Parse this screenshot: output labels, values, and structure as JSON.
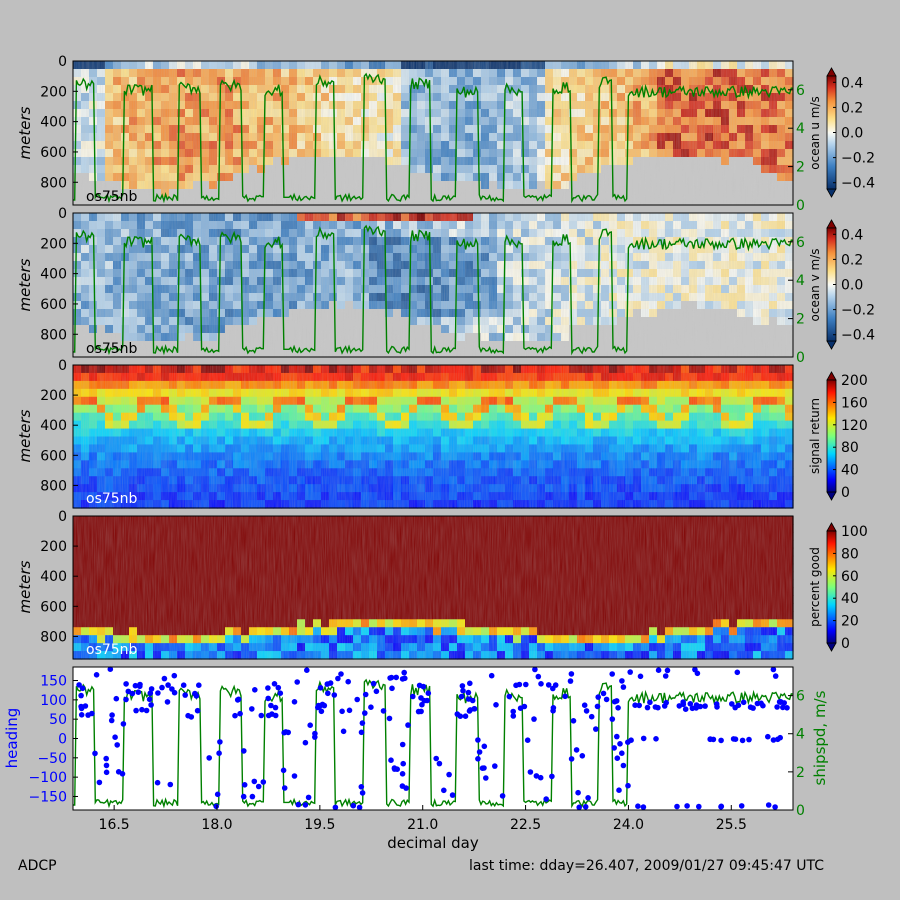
{
  "footer": {
    "left": "ADCP",
    "right": "last time: dday=26.407,  2009/01/27 09:45:47 UTC"
  },
  "chart_data": [
    {
      "type": "heatmap",
      "id": "u",
      "label": "os75nb",
      "ylabel": "meters",
      "yticks": [
        "0",
        "200",
        "400",
        "600",
        "800"
      ],
      "cbar_label": "ocean u m/s",
      "cbar_ticks": [
        "0.4",
        "0.2",
        "0.0",
        "−0.2",
        "−0.4"
      ],
      "shipspd_ticks": [
        "6",
        "4",
        "2",
        "0"
      ],
      "ylim": [
        950,
        0
      ],
      "clim": [
        -0.45,
        0.45
      ],
      "colormap": "diverging blue-white-red"
    },
    {
      "type": "heatmap",
      "id": "v",
      "label": "os75nb",
      "ylabel": "meters",
      "yticks": [
        "0",
        "200",
        "400",
        "600",
        "800"
      ],
      "cbar_label": "ocean v m/s",
      "cbar_ticks": [
        "0.4",
        "0.2",
        "0.0",
        "−0.2",
        "−0.4"
      ],
      "shipspd_ticks": [
        "6",
        "4",
        "2",
        "0"
      ],
      "ylim": [
        950,
        0
      ],
      "clim": [
        -0.45,
        0.45
      ],
      "colormap": "diverging blue-white-red"
    },
    {
      "type": "heatmap",
      "id": "amp",
      "label": "os75nb",
      "ylabel": "meters",
      "yticks": [
        "0",
        "200",
        "400",
        "600",
        "800"
      ],
      "cbar_label": "signal return",
      "cbar_ticks": [
        "200",
        "160",
        "120",
        "80",
        "40",
        "0"
      ],
      "ylim": [
        950,
        0
      ],
      "clim": [
        0,
        200
      ],
      "colormap": "jet"
    },
    {
      "type": "heatmap",
      "id": "pg",
      "label": "os75nb",
      "ylabel": "meters",
      "yticks": [
        "0",
        "200",
        "400",
        "600",
        "800"
      ],
      "cbar_label": "percent good",
      "cbar_ticks": [
        "100",
        "80",
        "60",
        "40",
        "20",
        "0"
      ],
      "ylim": [
        950,
        0
      ],
      "clim": [
        0,
        100
      ],
      "colormap": "jet"
    },
    {
      "type": "scatter",
      "id": "nav",
      "ylabel": "heading",
      "y2label": "shipspd, m/s",
      "yticks": [
        "150",
        "100",
        "50",
        "0",
        "−50",
        "−100",
        "−150"
      ],
      "y2ticks": [
        "6",
        "4",
        "2",
        "0"
      ],
      "xlabel": "decimal day",
      "xticks": [
        "16.5",
        "18.0",
        "19.5",
        "21.0",
        "22.5",
        "24.0",
        "25.5"
      ],
      "xlim": [
        15.9,
        26.4
      ],
      "ylim": [
        -185,
        185
      ],
      "y2lim": [
        0,
        7.5
      ],
      "series": [
        {
          "name": "heading",
          "color": "#0000ff"
        },
        {
          "name": "shipspd",
          "color": "#008000"
        }
      ],
      "shipspd_on_off": [
        {
          "start": 15.95,
          "end": 16.2,
          "speed": 6.3
        },
        {
          "start": 16.65,
          "end": 17.05,
          "speed": 6.0
        },
        {
          "start": 17.45,
          "end": 17.75,
          "speed": 6.1
        },
        {
          "start": 18.05,
          "end": 18.35,
          "speed": 6.2
        },
        {
          "start": 18.7,
          "end": 18.95,
          "speed": 6.0
        },
        {
          "start": 19.45,
          "end": 19.7,
          "speed": 6.4
        },
        {
          "start": 20.15,
          "end": 20.45,
          "speed": 6.6
        },
        {
          "start": 20.8,
          "end": 21.1,
          "speed": 6.3
        },
        {
          "start": 21.5,
          "end": 21.8,
          "speed": 5.9
        },
        {
          "start": 22.2,
          "end": 22.45,
          "speed": 6.0
        },
        {
          "start": 22.9,
          "end": 23.15,
          "speed": 6.1
        },
        {
          "start": 23.55,
          "end": 23.75,
          "speed": 6.4
        },
        {
          "start": 24.0,
          "end": 26.4,
          "speed": 5.9
        }
      ]
    }
  ]
}
